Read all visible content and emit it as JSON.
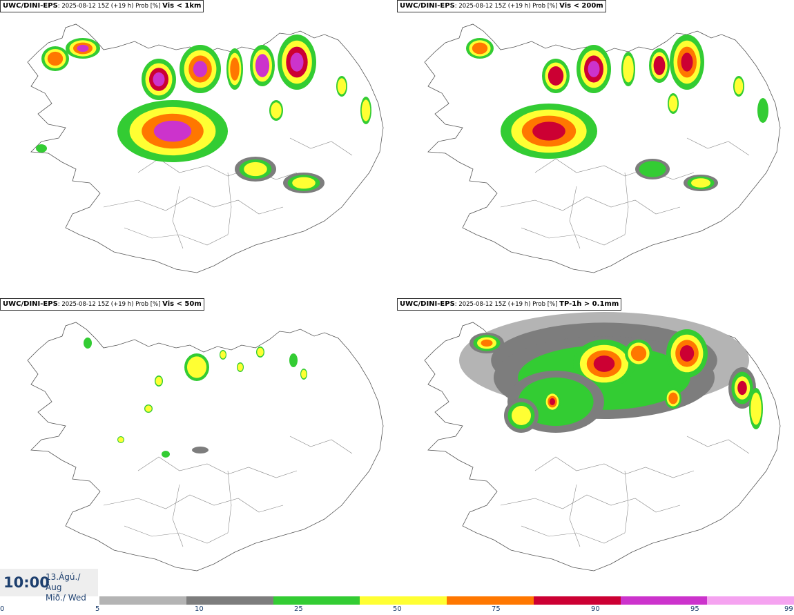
{
  "panels": [
    {
      "model": "UWC/DINI-EPS",
      "meta": ": 2025-08-12 15Z (+19 h) Prob [%]",
      "variable": "Vis < 1km"
    },
    {
      "model": "UWC/DINI-EPS",
      "meta": ": 2025-08-12 15Z (+19 h) Prob [%]",
      "variable": "Vis < 200m"
    },
    {
      "model": "UWC/DINI-EPS",
      "meta": ": 2025-08-12 15Z (+19 h) Prob [%]",
      "variable": "Vis < 50m"
    },
    {
      "model": "UWC/DINI-EPS",
      "meta": ": 2025-08-12 15Z (+19 h) Prob [%]",
      "variable": "TP-1h > 0.1mm"
    }
  ],
  "time": {
    "clock": "10:00",
    "date_line1": "13.Ágú./ Aug",
    "date_line2": "Mið./ Wed"
  },
  "legend": {
    "ticks": [
      "0",
      "5",
      "10",
      "25",
      "50",
      "75",
      "90",
      "95",
      "99"
    ],
    "colors": [
      "#b4b4b4",
      "#7d7d7d",
      "#33cc33",
      "#ffff33",
      "#ff7700",
      "#cc0033",
      "#cc33cc",
      "#f5a3f0"
    ]
  }
}
